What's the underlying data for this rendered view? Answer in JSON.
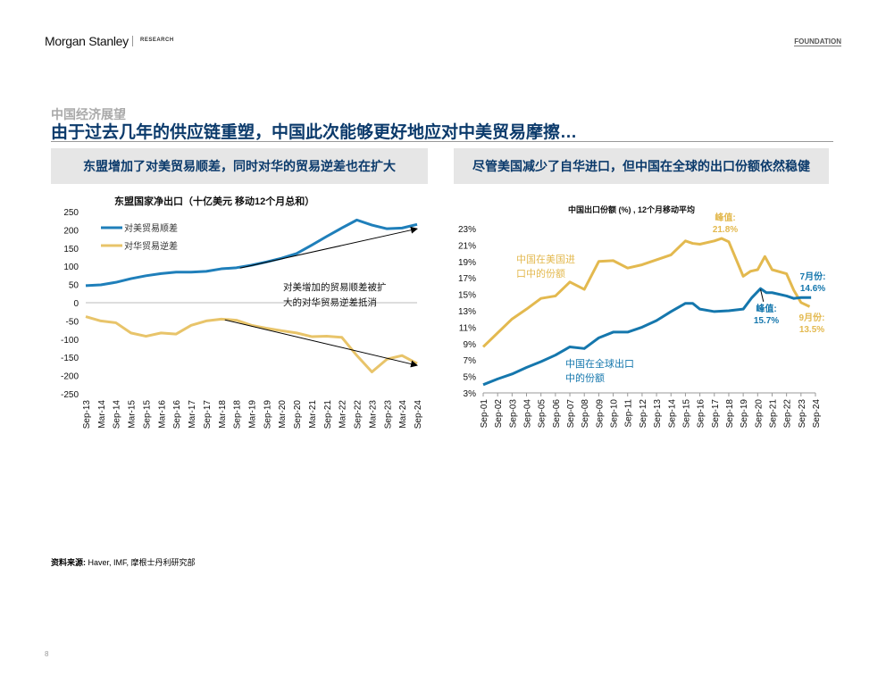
{
  "header": {
    "logo": "Morgan Stanley",
    "research": "RESEARCH",
    "foundation": "FOUNDATION"
  },
  "section": "中国经济展望",
  "title": "由于过去几年的供应链重塑，中国此次能够更好地应对中美贸易摩擦…",
  "banners": {
    "left": "东盟增加了对美贸易顺差，同时对华的贸易逆差也在扩大",
    "right": "尽管美国减少了自华进口，但中国在全球的出口份额依然稳健"
  },
  "source": {
    "label": "资料来源:",
    "text": " Haver, IMF, 摩根士丹利研究部"
  },
  "page_number": "8",
  "chart_data": [
    {
      "type": "line",
      "title": "东盟国家净出口（十亿美元 移动12个月总和）",
      "ylim": [
        -250,
        250
      ],
      "yticks": [
        "250",
        "200",
        "150",
        "100",
        "50",
        "0",
        "-50",
        "-100",
        "-150",
        "-200",
        "-250"
      ],
      "xticks": [
        "Sep-13",
        "Mar-14",
        "Sep-14",
        "Mar-15",
        "Sep-15",
        "Mar-16",
        "Sep-16",
        "Mar-17",
        "Sep-17",
        "Mar-18",
        "Sep-18",
        "Mar-19",
        "Sep-19",
        "Mar-20",
        "Sep-20",
        "Mar-21",
        "Sep-21",
        "Mar-22",
        "Sep-22",
        "Mar-23",
        "Sep-23",
        "Mar-24",
        "Sep-24"
      ],
      "series": [
        {
          "name": "对美贸易顺差",
          "color": "#1f7fba",
          "values": [
            47,
            49,
            56,
            66,
            74,
            80,
            84,
            84,
            86,
            93,
            96,
            103,
            112,
            122,
            135,
            158,
            182,
            205,
            227,
            213,
            203,
            205,
            215
          ]
        },
        {
          "name": "对华贸易逆差",
          "color": "#e8c46a",
          "values": [
            -38,
            -50,
            -55,
            -83,
            -92,
            -83,
            -86,
            -62,
            -50,
            -45,
            -48,
            -62,
            -70,
            -77,
            -83,
            -93,
            -92,
            -95,
            -145,
            -190,
            -155,
            -145,
            -167
          ]
        }
      ],
      "arrows": [
        {
          "from": [
            10,
            95
          ],
          "to": [
            22,
            203
          ]
        },
        {
          "from": [
            9,
            -47
          ],
          "to": [
            22,
            -172
          ]
        }
      ],
      "annotation": [
        "对美增加的贸易顺差被扩",
        "大的对华贸易逆差抵消"
      ],
      "legend": "top-left"
    },
    {
      "type": "line",
      "title": "中国出口份额 (%) , 12个月移动平均",
      "ylim": [
        3,
        23
      ],
      "yticks": [
        "23%",
        "21%",
        "19%",
        "17%",
        "15%",
        "13%",
        "11%",
        "9%",
        "7%",
        "5%",
        "3%"
      ],
      "xticks": [
        "Sep-01",
        "Sep-02",
        "Sep-03",
        "Sep-04",
        "Sep-05",
        "Sep-06",
        "Sep-07",
        "Sep-08",
        "Sep-09",
        "Sep-10",
        "Sep-11",
        "Sep-12",
        "Sep-13",
        "Sep-14",
        "Sep-15",
        "Sep-16",
        "Sep-17",
        "Sep-18",
        "Sep-19",
        "Sep-20",
        "Sep-21",
        "Sep-22",
        "Sep-23",
        "Sep-24"
      ],
      "series": [
        {
          "name": "中国在美国进口中的份额",
          "color": "#e3b94f",
          "x": [
            0,
            1,
            2,
            3,
            4,
            5,
            6,
            7,
            8,
            9,
            10,
            11,
            12,
            13,
            14,
            14.5,
            15,
            16,
            16.5,
            17,
            18,
            18.5,
            19,
            19.5,
            20,
            21,
            21.5,
            22,
            22.6
          ],
          "values": [
            8.6,
            10.3,
            12.0,
            13.2,
            14.5,
            14.8,
            16.5,
            15.6,
            19.0,
            19.1,
            18.2,
            18.6,
            19.2,
            19.8,
            21.5,
            21.2,
            21.1,
            21.5,
            21.8,
            21.4,
            17.2,
            17.8,
            18.0,
            19.6,
            18.0,
            17.5,
            15.5,
            14.0,
            13.5
          ]
        },
        {
          "name": "中国在全球出口中的份额",
          "color": "#1577ad",
          "x": [
            0,
            1,
            2,
            3,
            4,
            5,
            6,
            7,
            8,
            9,
            10,
            11,
            12,
            13,
            14,
            14.5,
            15,
            16,
            17,
            18,
            18.6,
            19.2,
            19.6,
            20,
            21,
            21.5,
            22,
            22.7
          ],
          "values": [
            4.0,
            4.7,
            5.3,
            6.1,
            6.8,
            7.6,
            8.6,
            8.4,
            9.7,
            10.4,
            10.4,
            11.0,
            11.8,
            12.9,
            13.9,
            13.9,
            13.2,
            12.9,
            13.0,
            13.2,
            14.6,
            15.7,
            15.2,
            15.2,
            14.8,
            14.5,
            14.6,
            14.6
          ]
        }
      ],
      "labels": {
        "us_line": [
          "中国在美国进",
          "口中的份额"
        ],
        "global_line": [
          "中国在全球出口",
          "中的份额"
        ],
        "peak_us": [
          "峰值:",
          "21.8%"
        ],
        "peak_global": [
          "峰值:",
          "15.7%"
        ],
        "jul": [
          "7月份:",
          "14.6%"
        ],
        "sep": [
          "9月份:",
          "13.5%"
        ]
      }
    }
  ]
}
